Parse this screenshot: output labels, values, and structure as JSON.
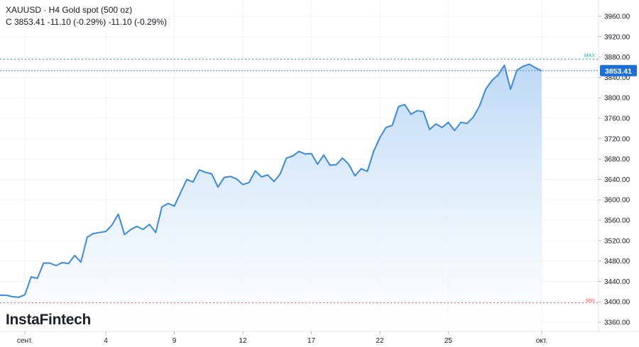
{
  "header": {
    "symbol": "XAUUSD · H4 Gold spot (500 oz)",
    "quote": "C 3853.41 -11.10 (-0.29%) -11.10 (-0.29%)"
  },
  "logo": {
    "text": "InstaFintech"
  },
  "colors": {
    "line": "#3a8ad8",
    "area_top": "#b9d6f5",
    "area_bottom": "#ffffff",
    "max": "#26a69a",
    "min": "#ef5350",
    "badge": "#1e6fd9"
  },
  "chart_data": {
    "type": "area",
    "symbol": "XAUUSD",
    "timeframe": "H4",
    "last_value": "3853.41",
    "max_label": "MAX",
    "min_label": "MIN",
    "max_value": 3876,
    "min_value": 3398,
    "y_range": [
      3342,
      3992
    ],
    "y_ticks": [
      3360,
      3400,
      3440,
      3480,
      3520,
      3560,
      3600,
      3640,
      3680,
      3720,
      3760,
      3800,
      3840,
      3880,
      3920,
      3960
    ],
    "y_tick_labels": [
      "3360.00",
      "3400.00",
      "3440.00",
      "3480.00",
      "3520.00",
      "3560.00",
      "3600.00",
      "3640.00",
      "3680.00",
      "3720.00",
      "3760.00",
      "3800.00",
      "3840.00",
      "3880.00",
      "3920.00",
      "3960.00"
    ],
    "x_ticks": [
      {
        "label": "сент.",
        "i": 4
      },
      {
        "label": "4",
        "i": 17
      },
      {
        "label": "9",
        "i": 28
      },
      {
        "label": "12",
        "i": 39
      },
      {
        "label": "17",
        "i": 50
      },
      {
        "label": "22",
        "i": 61
      },
      {
        "label": "25",
        "i": 72
      },
      {
        "label": "окт.",
        "i": 87
      }
    ],
    "grid": true,
    "values": [
      3413,
      3413,
      3410,
      3409,
      3414,
      3449,
      3446,
      3476,
      3476,
      3471,
      3477,
      3475,
      3491,
      3478,
      3527,
      3534,
      3536,
      3538,
      3551,
      3572,
      3532,
      3542,
      3548,
      3542,
      3552,
      3536,
      3586,
      3593,
      3588,
      3614,
      3640,
      3635,
      3659,
      3654,
      3651,
      3625,
      3644,
      3646,
      3641,
      3630,
      3634,
      3657,
      3645,
      3649,
      3636,
      3651,
      3682,
      3686,
      3695,
      3690,
      3691,
      3670,
      3688,
      3668,
      3669,
      3682,
      3670,
      3647,
      3661,
      3656,
      3695,
      3722,
      3742,
      3746,
      3783,
      3787,
      3768,
      3775,
      3773,
      3738,
      3749,
      3742,
      3752,
      3736,
      3752,
      3750,
      3762,
      3784,
      3817,
      3834,
      3845,
      3864,
      3817,
      3854,
      3862,
      3866,
      3859,
      3853
    ]
  }
}
